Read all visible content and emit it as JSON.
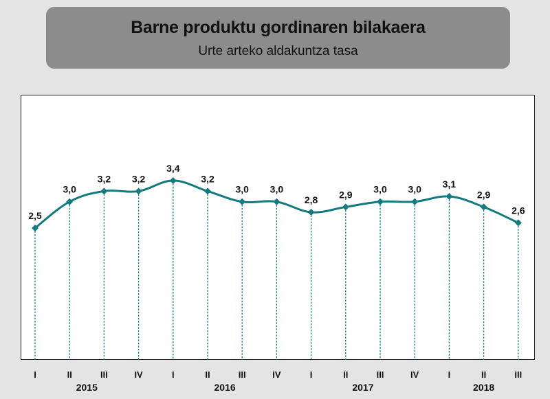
{
  "header": {
    "title": "Barne produktu gordinaren bilakaera",
    "subtitle": "Urte arteko aldakuntza tasa"
  },
  "colors": {
    "series": "#137a80",
    "background": "#e4e4e4",
    "title_box": "#8c8c8c"
  },
  "chart_data": {
    "type": "line",
    "title": "Barne produktu gordinaren bilakaera",
    "subtitle": "Urte arteko aldakuntza tasa",
    "categories": [
      "I",
      "II",
      "III",
      "IV",
      "I",
      "II",
      "III",
      "IV",
      "I",
      "II",
      "III",
      "IV",
      "I",
      "II",
      "III"
    ],
    "years": [
      {
        "label": "2015",
        "quarters": [
          0,
          1,
          2,
          3
        ]
      },
      {
        "label": "2016",
        "quarters": [
          4,
          5,
          6,
          7
        ]
      },
      {
        "label": "2017",
        "quarters": [
          8,
          9,
          10,
          11
        ]
      },
      {
        "label": "2018",
        "quarters": [
          12,
          13,
          14
        ]
      }
    ],
    "series": [
      {
        "values": [
          2.5,
          3.0,
          3.2,
          3.2,
          3.4,
          3.2,
          3.0,
          3.0,
          2.8,
          2.9,
          3.0,
          3.0,
          3.1,
          2.9,
          2.6
        ],
        "data_labels": [
          "2,5",
          "3,0",
          "3,2",
          "3,2",
          "3,4",
          "3,2",
          "3,0",
          "3,0",
          "2,8",
          "2,9",
          "3,0",
          "3,0",
          "3,1",
          "2,9",
          "2,6"
        ]
      }
    ],
    "ylim": [
      0,
      4.6
    ],
    "grid": false,
    "drop_lines": true,
    "smooth": true,
    "marker": "diamond"
  }
}
